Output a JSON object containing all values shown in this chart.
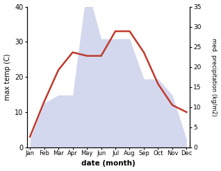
{
  "months": [
    "Jan",
    "Feb",
    "Mar",
    "Apr",
    "May",
    "Jun",
    "Jul",
    "Aug",
    "Sep",
    "Oct",
    "Nov",
    "Dec"
  ],
  "temp_max": [
    3,
    13,
    22,
    27,
    26,
    26,
    33,
    33,
    27,
    18,
    12,
    10
  ],
  "precip": [
    2,
    11,
    13,
    13,
    40,
    27,
    27,
    27,
    17,
    17,
    13,
    2
  ],
  "temp_color": "#c0392b",
  "precip_fill_color": "#b0b8e0",
  "left_label": "max temp (C)",
  "right_label": "med. precipitation (kg/m2)",
  "xlabel": "date (month)",
  "left_ylim": [
    0,
    40
  ],
  "right_ylim": [
    0,
    35
  ],
  "left_yticks": [
    0,
    10,
    20,
    30,
    40
  ],
  "right_yticks": [
    0,
    5,
    10,
    15,
    20,
    25,
    30,
    35
  ],
  "figsize": [
    3.18,
    2.47
  ],
  "dpi": 100
}
